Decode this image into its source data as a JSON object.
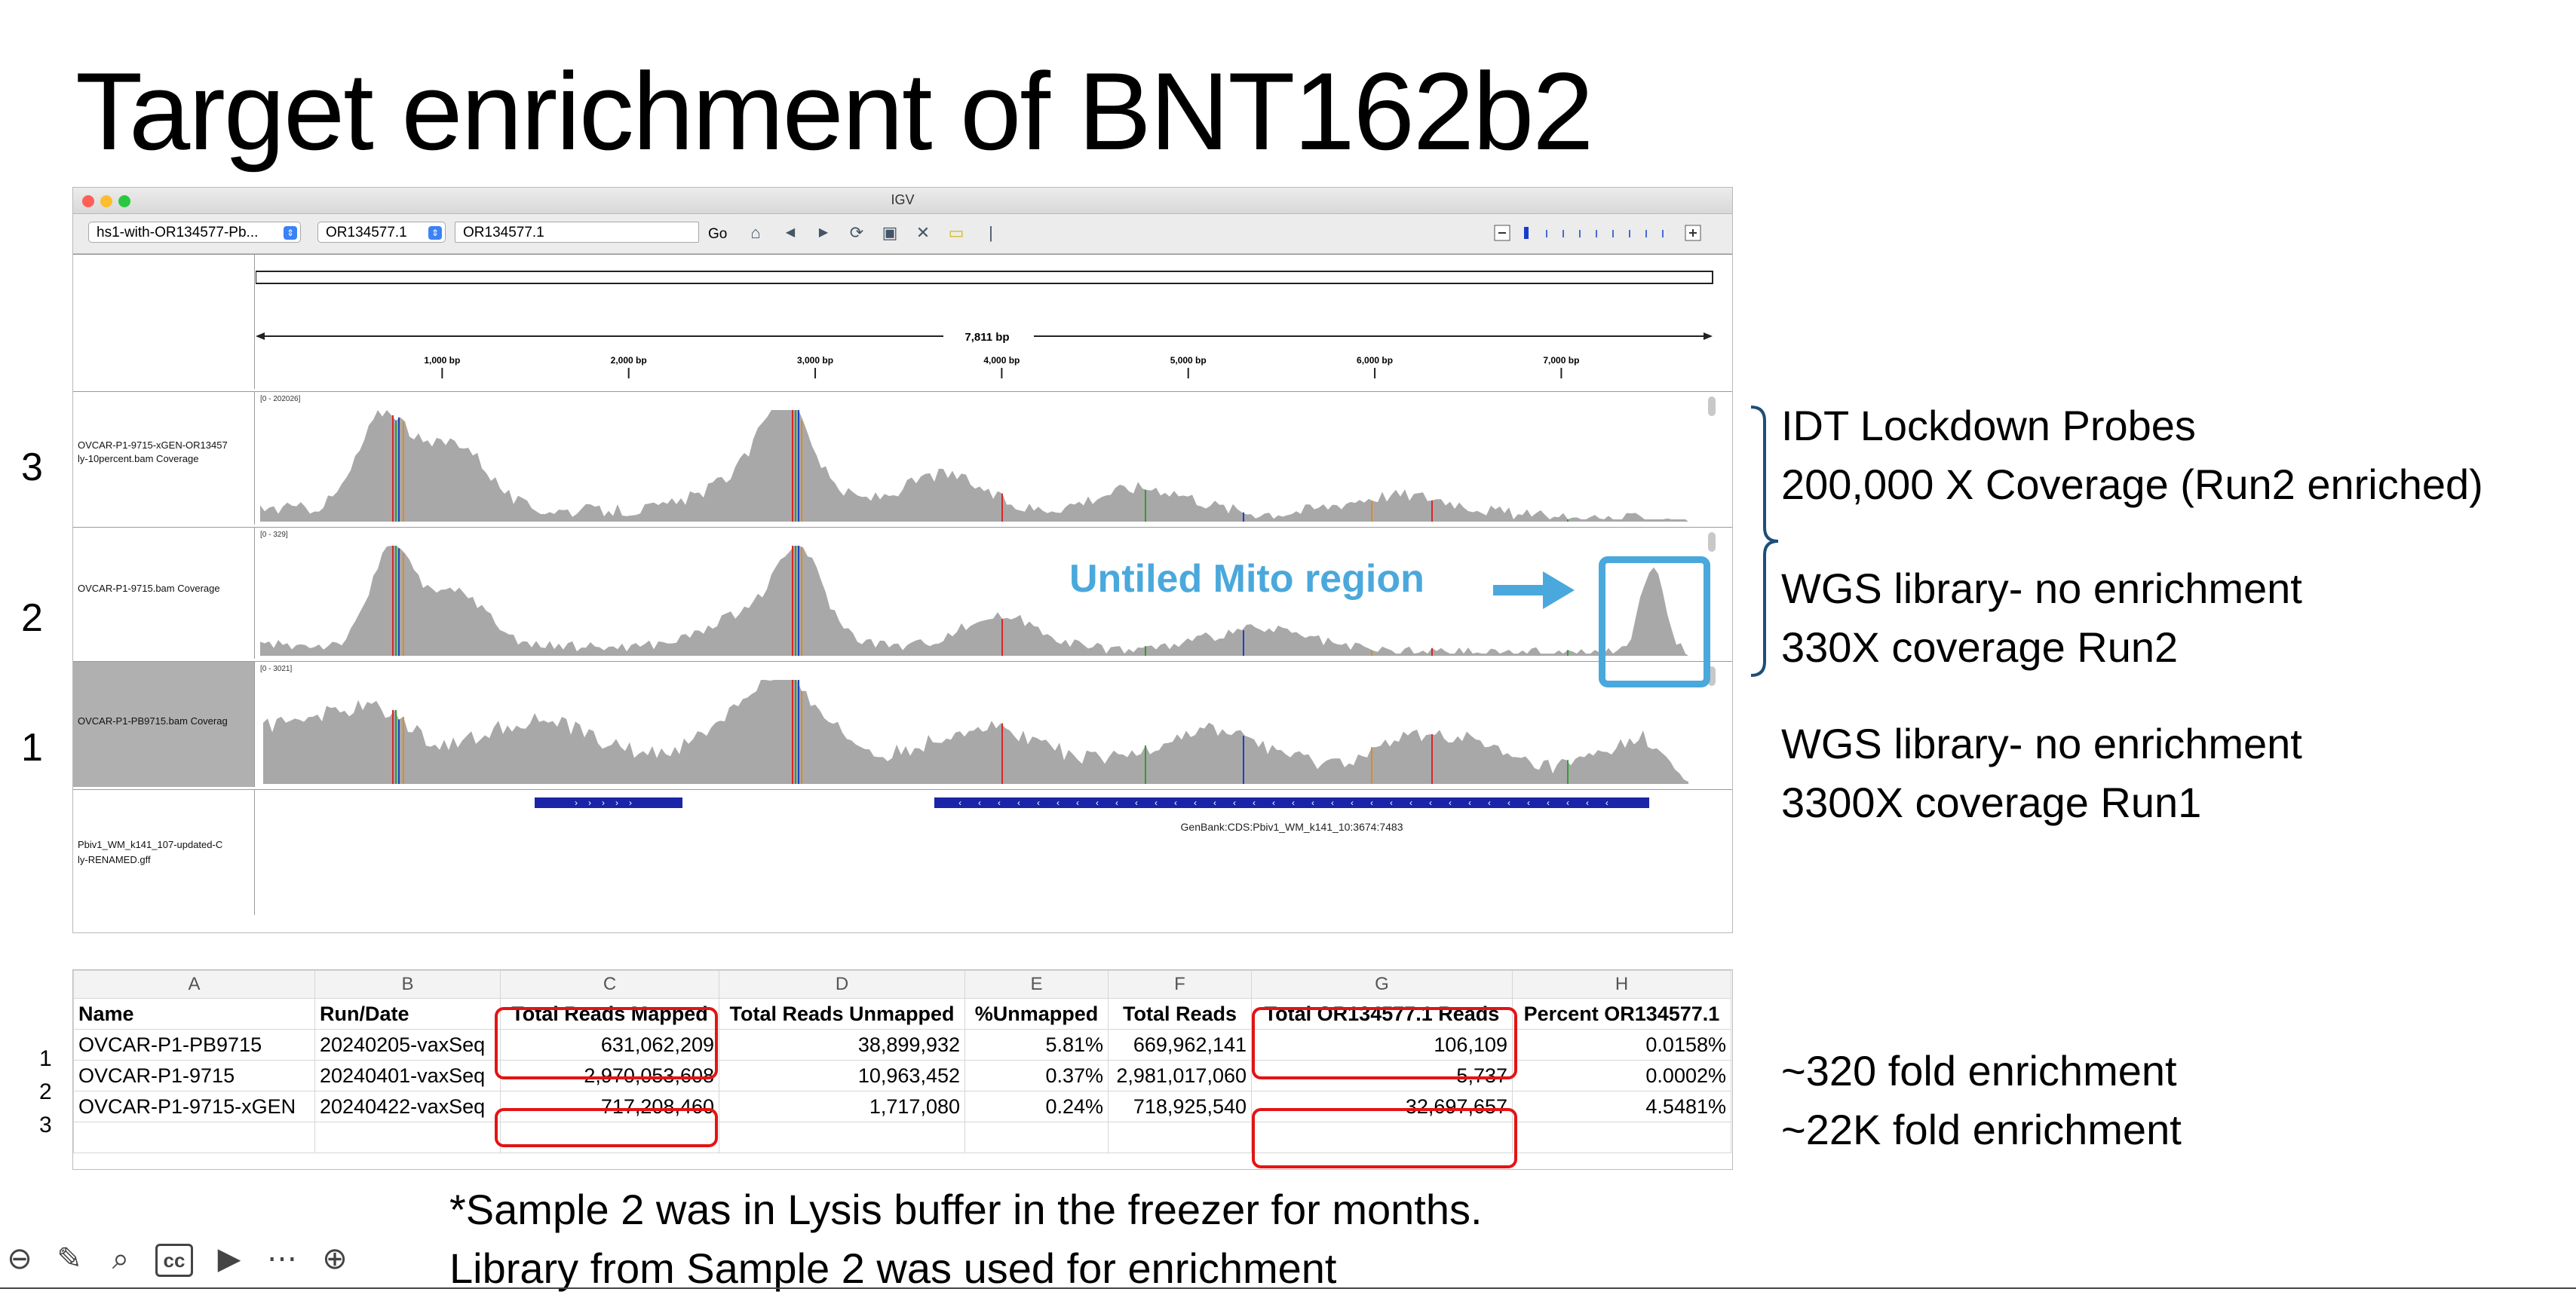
{
  "slide": {
    "title": "Target enrichment of  BNT162b2",
    "track_numbers": [
      "3",
      "2",
      "1"
    ],
    "annotations": {
      "probes_line1": "IDT Lockdown Probes",
      "probes_line2": "200,000 X Coverage (Run2 enriched)",
      "wgs2_line1": "WGS library- no enrichment",
      "wgs2_line2": "330X coverage Run2",
      "wgs1_line1": "WGS library- no enrichment",
      "wgs1_line2": "3300X coverage Run1",
      "fold1": "~320 fold enrichment",
      "fold2": "~22K fold enrichment"
    },
    "footnote_line1": "*Sample 2 was in Lysis buffer in the freezer for months.",
    "footnote_line2": "Library from Sample 2 was used for enrichment"
  },
  "igv": {
    "window_title": "IGV",
    "genome_select": "hs1-with-OR134577-Pb...",
    "chrom_select": "OR134577.1",
    "locus_input": "OR134577.1",
    "go_label": "Go",
    "ruler": {
      "span_label": "7,811 bp",
      "ticks": [
        "1,000 bp",
        "2,000 bp",
        "3,000 bp",
        "4,000 bp",
        "5,000 bp",
        "6,000 bp",
        "7,000 bp"
      ]
    },
    "tracks": [
      {
        "name_line1": "OVCAR-P1-9715-xGEN-OR13457",
        "name_line2": "ly-10percent.bam Coverage",
        "range": "[0 - 202026]"
      },
      {
        "name_line1": "OVCAR-P1-9715.bam Coverage",
        "name_line2": "",
        "range": "[0 - 329]"
      },
      {
        "name_line1": "OVCAR-P1-PB9715.bam Coverag",
        "name_line2": "",
        "range": "[0 - 3021]"
      }
    ],
    "mito_label": "Untiled Mito region",
    "mito_color": "#4aa8dc",
    "gff_track": {
      "name_line1": "Pbiv1_WM_k141_107-updated-C",
      "name_line2": "ly-RENAMED.gff",
      "feature_label": "GenBank:CDS:Pbiv1_WM_k141_10:3674:7483"
    },
    "colors": {
      "coverage": "#a8a8a8",
      "feature": "#1a24a8"
    }
  },
  "sheet": {
    "col_letters": [
      "A",
      "B",
      "C",
      "D",
      "E",
      "F",
      "G",
      "H"
    ],
    "headers": [
      "Name",
      "Run/Date",
      "Total Reads Mapped",
      "Total Reads Unmapped",
      "%Unmapped",
      "Total Reads",
      "Total OR134577.1 Reads",
      "Percent OR134577.1"
    ],
    "rows": [
      {
        "n": "1",
        "cells": [
          "OVCAR-P1-PB9715",
          "20240205-vaxSeq",
          "631,062,209",
          "38,899,932",
          "5.81%",
          "669,962,141",
          "106,109",
          "0.0158%"
        ]
      },
      {
        "n": "2",
        "cells": [
          "OVCAR-P1-9715",
          "20240401-vaxSeq",
          "2,970,053,608",
          "10,963,452",
          "0.37%",
          "2,981,017,060",
          "5,737",
          "0.0002%"
        ]
      },
      {
        "n": "3",
        "cells": [
          "OVCAR-P1-9715-xGEN",
          "20240422-vaxSeq",
          "717,208,460",
          "1,717,080",
          "0.24%",
          "718,925,540",
          "32,697,657",
          "4.5481%"
        ]
      }
    ]
  },
  "toolbar_icons": [
    "back-arrow-icon",
    "pen-icon",
    "magnifier-icon",
    "closed-caption-icon",
    "video-camera-icon",
    "more-icon",
    "forward-arrow-icon"
  ]
}
